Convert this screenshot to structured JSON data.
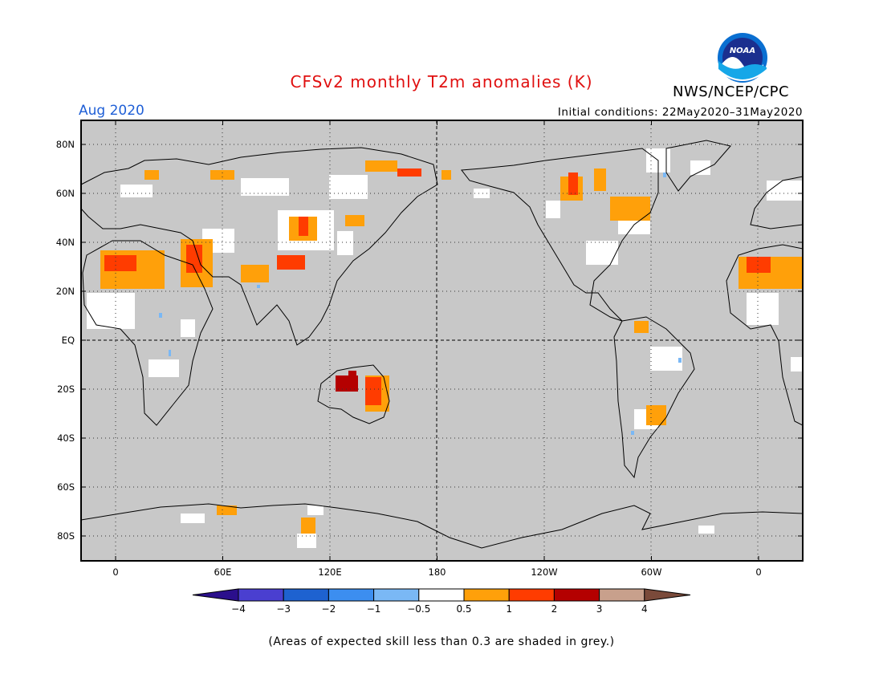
{
  "title": "CFSv2 monthly T2m anomalies (K)",
  "month": "Aug 2020",
  "initial_conditions": "Initial conditions: 22May2020–31May2020",
  "agency": "NWS/NCEP/CPC",
  "logo_text": "NOAA",
  "note": "(Areas of expected skill less than 0.3 are shaded in grey.)",
  "lat_labels": [
    "80N",
    "60N",
    "40N",
    "20N",
    "EQ",
    "20S",
    "40S",
    "60S",
    "80S"
  ],
  "lat_values": [
    80,
    60,
    40,
    20,
    0,
    -20,
    -40,
    -60,
    -80
  ],
  "lon_labels": [
    "0",
    "60E",
    "120E",
    "180",
    "120W",
    "60W",
    "0"
  ],
  "lon_values": [
    0,
    60,
    120,
    180,
    240,
    300,
    360
  ],
  "colorbar": {
    "labels": [
      "−4",
      "−3",
      "−2",
      "−1",
      "−0.5",
      "0.5",
      "1",
      "2",
      "3",
      "4"
    ],
    "colors": [
      "#2b0f8c",
      "#4a3fd0",
      "#1e62d0",
      "#3c8ef0",
      "#7ab8f5",
      "#ffffff",
      "#ffa00a",
      "#ff3c00",
      "#b40000",
      "#c8a08c",
      "#7a4a3a"
    ]
  },
  "colors": {
    "land_grey": "#c8c8c8",
    "ocean_grey": "#c8c8c8",
    "warm_05": "#ffa00a",
    "warm_1": "#ff3c00",
    "warm_2": "#b40000",
    "neutral": "#ffffff",
    "cool": "#6aaaf0"
  }
}
